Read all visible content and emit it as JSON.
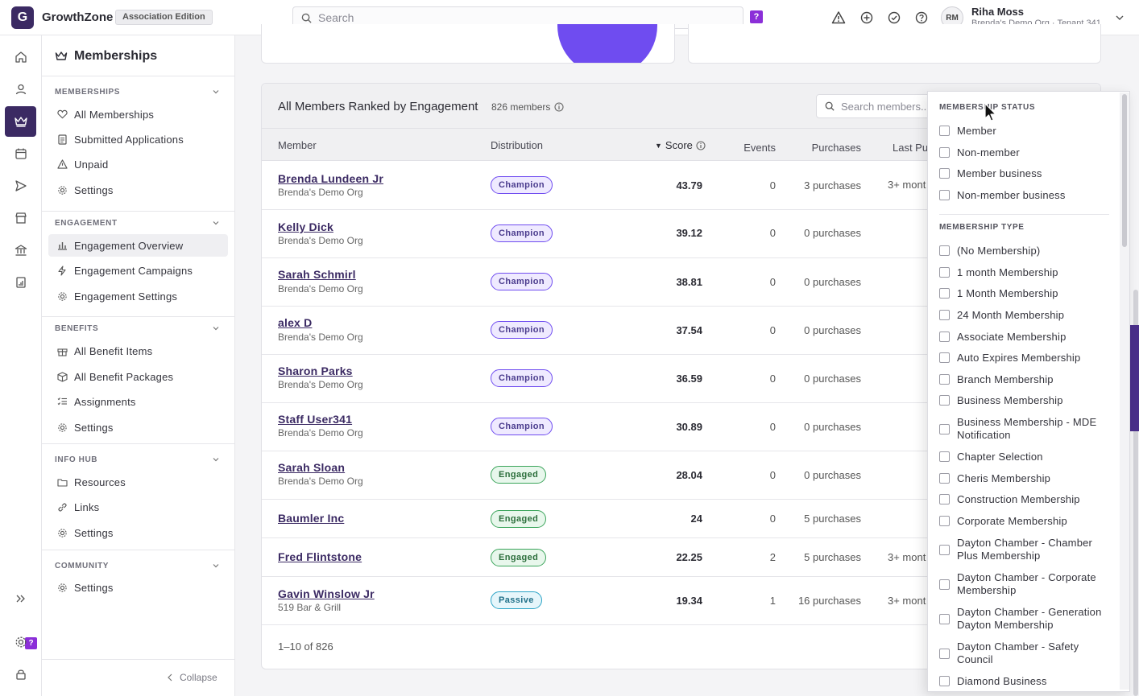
{
  "app": {
    "name": "GrowthZone",
    "edition": "Association Edition",
    "logo_letter": "G"
  },
  "search": {
    "placeholder": "Search"
  },
  "help_badge": "?",
  "user": {
    "initials": "RM",
    "name": "Riha Moss",
    "org": "Brenda's Demo Org · Tenant 341"
  },
  "sidebar": {
    "title": "Memberships",
    "sections": [
      {
        "label": "MEMBERSHIPS",
        "items": [
          {
            "label": "All Memberships",
            "icon": "heart-icon"
          },
          {
            "label": "Submitted Applications",
            "icon": "document-icon"
          },
          {
            "label": "Unpaid",
            "icon": "warning-icon"
          },
          {
            "label": "Settings",
            "icon": "gear-icon"
          }
        ]
      },
      {
        "label": "ENGAGEMENT",
        "items": [
          {
            "label": "Engagement Overview",
            "icon": "bar-chart-icon",
            "active": true
          },
          {
            "label": "Engagement Campaigns",
            "icon": "bolt-icon"
          },
          {
            "label": "Engagement Settings",
            "icon": "gear-icon"
          }
        ]
      },
      {
        "label": "BENEFITS",
        "items": [
          {
            "label": "All Benefit Items",
            "icon": "gift-icon"
          },
          {
            "label": "All Benefit Packages",
            "icon": "package-icon"
          },
          {
            "label": "Assignments",
            "icon": "list-check-icon"
          },
          {
            "label": "Settings",
            "icon": "gear-icon"
          }
        ]
      },
      {
        "label": "INFO HUB",
        "items": [
          {
            "label": "Resources",
            "icon": "folder-icon"
          },
          {
            "label": "Links",
            "icon": "link-icon"
          },
          {
            "label": "Settings",
            "icon": "gear-icon"
          }
        ]
      },
      {
        "label": "COMMUNITY",
        "items": [
          {
            "label": "Settings",
            "icon": "gear-icon"
          }
        ]
      }
    ],
    "collapse_label": "Collapse"
  },
  "panel": {
    "title": "All Members Ranked by Engagement",
    "count": "826 members",
    "search_placeholder": "Search members...",
    "columns": {
      "member": "Member",
      "distribution": "Distribution",
      "score": "Score",
      "events": "Events",
      "purchases": "Purchases",
      "last": "Last Pu"
    },
    "rows": [
      {
        "name": "Brenda Lundeen Jr",
        "org": "Brenda's Demo Org",
        "dist": "Champion",
        "score": "43.79",
        "events": "0",
        "purchases": "3 purchases",
        "last": "3+ mont"
      },
      {
        "name": "Kelly Dick",
        "org": "Brenda's Demo Org",
        "dist": "Champion",
        "score": "39.12",
        "events": "0",
        "purchases": "0 purchases",
        "last": ""
      },
      {
        "name": "Sarah Schmirl",
        "org": "Brenda's Demo Org",
        "dist": "Champion",
        "score": "38.81",
        "events": "0",
        "purchases": "0 purchases",
        "last": ""
      },
      {
        "name": "alex D",
        "org": "Brenda's Demo Org",
        "dist": "Champion",
        "score": "37.54",
        "events": "0",
        "purchases": "0 purchases",
        "last": ""
      },
      {
        "name": "Sharon Parks",
        "org": "Brenda's Demo Org",
        "dist": "Champion",
        "score": "36.59",
        "events": "0",
        "purchases": "0 purchases",
        "last": ""
      },
      {
        "name": "Staff User341",
        "org": "Brenda's Demo Org",
        "dist": "Champion",
        "score": "30.89",
        "events": "0",
        "purchases": "0 purchases",
        "last": ""
      },
      {
        "name": "Sarah Sloan",
        "org": "Brenda's Demo Org",
        "dist": "Engaged",
        "score": "28.04",
        "events": "0",
        "purchases": "0 purchases",
        "last": ""
      },
      {
        "name": "Baumler Inc",
        "org": "",
        "dist": "Engaged",
        "score": "24",
        "events": "0",
        "purchases": "5 purchases",
        "last": ""
      },
      {
        "name": "Fred Flintstone",
        "org": "",
        "dist": "Engaged",
        "score": "22.25",
        "events": "2",
        "purchases": "5 purchases",
        "last": "3+ mont"
      },
      {
        "name": "Gavin Winslow Jr",
        "org": "519 Bar & Grill",
        "dist": "Passive",
        "score": "19.34",
        "events": "1",
        "purchases": "16 purchases",
        "last": "3+ mont"
      }
    ],
    "pager": "1–10 of 826"
  },
  "filter": {
    "status_label": "MEMBERSHIP STATUS",
    "status_options": [
      "Member",
      "Non-member",
      "Member business",
      "Non-member business"
    ],
    "type_label": "MEMBERSHIP TYPE",
    "type_options": [
      "(No Membership)",
      "1 month Membership",
      "1 Month Membership",
      "24 Month Membership",
      "Associate Membership",
      "Auto Expires Membership",
      "Branch Membership",
      "Business Membership",
      "Business Membership - MDE Notification",
      "Chapter Selection",
      "Cheris Membership",
      "Construction Membership",
      "Corporate Membership",
      "Dayton Chamber - Chamber Plus Membership",
      "Dayton Chamber - Corporate Membership",
      "Dayton Chamber - Generation Dayton Membership",
      "Dayton Chamber - Safety Council",
      "Diamond Business"
    ]
  },
  "colors": {
    "brand": "#3b2a63",
    "accent": "#6f4cf0",
    "help": "#8b2fd8"
  }
}
